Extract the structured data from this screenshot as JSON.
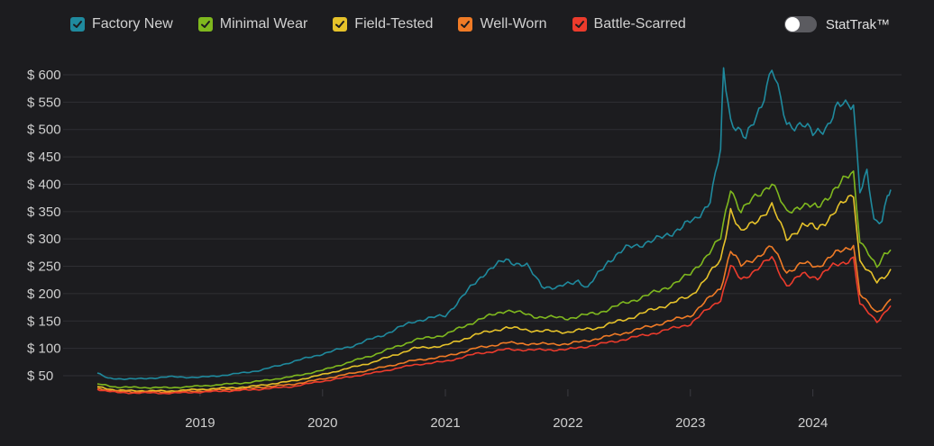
{
  "legend": {
    "items": [
      {
        "label": "Factory New",
        "color": "#1f8a9e"
      },
      {
        "label": "Minimal Wear",
        "color": "#7fb81e"
      },
      {
        "label": "Field-Tested",
        "color": "#e6c22a"
      },
      {
        "label": "Well-Worn",
        "color": "#f07b26"
      },
      {
        "label": "Battle-Scarred",
        "color": "#ec3b2c"
      }
    ],
    "checked_icon": "check-icon"
  },
  "toggle": {
    "label": "StatTrak™",
    "on": false
  },
  "chart_data": {
    "type": "line",
    "x_range": [
      "2018-03-01",
      "2024-08-20"
    ],
    "ylim": [
      0,
      640
    ],
    "y_ticks": [
      50,
      100,
      150,
      200,
      250,
      300,
      350,
      400,
      450,
      500,
      550,
      600
    ],
    "y_tick_labels": [
      "$ 50",
      "$ 100",
      "$ 150",
      "$ 200",
      "$ 250",
      "$ 300",
      "$ 350",
      "$ 400",
      "$ 450",
      "$ 500",
      "$ 550",
      "$ 600"
    ],
    "x_ticks": [
      "2019-01-01",
      "2020-01-01",
      "2021-01-01",
      "2022-01-01",
      "2023-01-01",
      "2024-01-01"
    ],
    "x_tick_labels": [
      "2019",
      "2020",
      "2021",
      "2022",
      "2023",
      "2024"
    ],
    "grid": true,
    "legend_position": "top-left",
    "series": [
      {
        "name": "Factory New",
        "color": "#1f8a9e",
        "points": [
          [
            "2018-03-01",
            55
          ],
          [
            "2018-04-01",
            45
          ],
          [
            "2018-07-01",
            44
          ],
          [
            "2018-10-01",
            48
          ],
          [
            "2019-01-01",
            47
          ],
          [
            "2019-04-01",
            52
          ],
          [
            "2019-07-01",
            60
          ],
          [
            "2019-10-01",
            75
          ],
          [
            "2020-01-01",
            90
          ],
          [
            "2020-04-01",
            105
          ],
          [
            "2020-07-01",
            125
          ],
          [
            "2020-10-01",
            150
          ],
          [
            "2021-01-01",
            160
          ],
          [
            "2021-03-01",
            200
          ],
          [
            "2021-05-01",
            240
          ],
          [
            "2021-07-01",
            262
          ],
          [
            "2021-09-01",
            250
          ],
          [
            "2021-10-15",
            215
          ],
          [
            "2021-12-01",
            210
          ],
          [
            "2022-02-01",
            225
          ],
          [
            "2022-03-01",
            210
          ],
          [
            "2022-05-01",
            260
          ],
          [
            "2022-07-01",
            285
          ],
          [
            "2022-10-01",
            300
          ],
          [
            "2022-12-01",
            320
          ],
          [
            "2023-01-15",
            335
          ],
          [
            "2023-03-01",
            370
          ],
          [
            "2023-04-01",
            460
          ],
          [
            "2023-04-10",
            612
          ],
          [
            "2023-05-01",
            520
          ],
          [
            "2023-06-15",
            480
          ],
          [
            "2023-08-01",
            550
          ],
          [
            "2023-09-01",
            610
          ],
          [
            "2023-10-15",
            510
          ],
          [
            "2023-12-01",
            510
          ],
          [
            "2024-01-01",
            490
          ],
          [
            "2024-02-15",
            510
          ],
          [
            "2024-03-15",
            540
          ],
          [
            "2024-05-01",
            550
          ],
          [
            "2024-05-20",
            390
          ],
          [
            "2024-06-10",
            420
          ],
          [
            "2024-07-01",
            330
          ],
          [
            "2024-07-25",
            335
          ],
          [
            "2024-08-10",
            385
          ],
          [
            "2024-08-20",
            390
          ]
        ]
      },
      {
        "name": "Minimal Wear",
        "color": "#7fb81e",
        "points": [
          [
            "2018-03-01",
            35
          ],
          [
            "2018-05-01",
            29
          ],
          [
            "2018-10-01",
            28
          ],
          [
            "2019-01-01",
            31
          ],
          [
            "2019-06-01",
            38
          ],
          [
            "2019-10-01",
            48
          ],
          [
            "2020-01-01",
            60
          ],
          [
            "2020-06-01",
            88
          ],
          [
            "2020-10-01",
            115
          ],
          [
            "2021-01-01",
            125
          ],
          [
            "2021-04-01",
            150
          ],
          [
            "2021-07-01",
            170
          ],
          [
            "2021-10-01",
            158
          ],
          [
            "2022-01-01",
            155
          ],
          [
            "2022-04-01",
            165
          ],
          [
            "2022-07-01",
            185
          ],
          [
            "2022-10-01",
            205
          ],
          [
            "2023-01-01",
            235
          ],
          [
            "2023-04-01",
            300
          ],
          [
            "2023-05-01",
            395
          ],
          [
            "2023-06-01",
            350
          ],
          [
            "2023-09-01",
            405
          ],
          [
            "2023-10-15",
            345
          ],
          [
            "2023-12-01",
            365
          ],
          [
            "2024-01-15",
            355
          ],
          [
            "2024-03-01",
            390
          ],
          [
            "2024-05-01",
            420
          ],
          [
            "2024-05-20",
            300
          ],
          [
            "2024-06-15",
            275
          ],
          [
            "2024-07-10",
            245
          ],
          [
            "2024-08-01",
            270
          ],
          [
            "2024-08-20",
            280
          ]
        ]
      },
      {
        "name": "Field-Tested",
        "color": "#e6c22a",
        "points": [
          [
            "2018-03-01",
            30
          ],
          [
            "2018-05-01",
            23
          ],
          [
            "2018-10-01",
            22
          ],
          [
            "2019-01-01",
            25
          ],
          [
            "2019-06-01",
            30
          ],
          [
            "2019-10-01",
            40
          ],
          [
            "2020-01-01",
            52
          ],
          [
            "2020-06-01",
            75
          ],
          [
            "2020-10-01",
            100
          ],
          [
            "2021-01-01",
            105
          ],
          [
            "2021-04-01",
            125
          ],
          [
            "2021-07-01",
            138
          ],
          [
            "2021-10-01",
            132
          ],
          [
            "2022-01-01",
            130
          ],
          [
            "2022-04-01",
            138
          ],
          [
            "2022-07-01",
            155
          ],
          [
            "2022-10-01",
            175
          ],
          [
            "2023-01-01",
            195
          ],
          [
            "2023-04-01",
            260
          ],
          [
            "2023-05-01",
            355
          ],
          [
            "2023-06-01",
            310
          ],
          [
            "2023-09-01",
            360
          ],
          [
            "2023-10-15",
            300
          ],
          [
            "2023-12-01",
            325
          ],
          [
            "2024-01-15",
            320
          ],
          [
            "2024-03-01",
            345
          ],
          [
            "2024-05-01",
            385
          ],
          [
            "2024-05-20",
            260
          ],
          [
            "2024-06-15",
            240
          ],
          [
            "2024-07-10",
            220
          ],
          [
            "2024-08-01",
            232
          ],
          [
            "2024-08-20",
            245
          ]
        ]
      },
      {
        "name": "Well-Worn",
        "color": "#f07b26",
        "points": [
          [
            "2018-03-01",
            27
          ],
          [
            "2018-05-01",
            21
          ],
          [
            "2018-10-01",
            20
          ],
          [
            "2019-01-01",
            22
          ],
          [
            "2019-06-01",
            27
          ],
          [
            "2019-10-01",
            34
          ],
          [
            "2020-01-01",
            44
          ],
          [
            "2020-06-01",
            62
          ],
          [
            "2020-10-01",
            78
          ],
          [
            "2021-01-01",
            85
          ],
          [
            "2021-04-01",
            100
          ],
          [
            "2021-07-01",
            110
          ],
          [
            "2021-10-01",
            108
          ],
          [
            "2022-01-01",
            108
          ],
          [
            "2022-04-01",
            118
          ],
          [
            "2022-07-01",
            130
          ],
          [
            "2022-10-01",
            145
          ],
          [
            "2023-01-01",
            160
          ],
          [
            "2023-04-01",
            210
          ],
          [
            "2023-05-01",
            280
          ],
          [
            "2023-06-01",
            250
          ],
          [
            "2023-09-01",
            285
          ],
          [
            "2023-10-15",
            240
          ],
          [
            "2023-12-01",
            255
          ],
          [
            "2024-01-15",
            250
          ],
          [
            "2024-03-01",
            270
          ],
          [
            "2024-05-01",
            290
          ],
          [
            "2024-05-20",
            200
          ],
          [
            "2024-06-15",
            180
          ],
          [
            "2024-07-10",
            165
          ],
          [
            "2024-08-01",
            178
          ],
          [
            "2024-08-20",
            190
          ]
        ]
      },
      {
        "name": "Battle-Scarred",
        "color": "#ec3b2c",
        "points": [
          [
            "2018-03-01",
            25
          ],
          [
            "2018-05-01",
            19
          ],
          [
            "2018-10-01",
            18
          ],
          [
            "2019-01-01",
            20
          ],
          [
            "2019-06-01",
            24
          ],
          [
            "2019-10-01",
            30
          ],
          [
            "2020-01-01",
            40
          ],
          [
            "2020-06-01",
            55
          ],
          [
            "2020-10-01",
            70
          ],
          [
            "2021-01-01",
            76
          ],
          [
            "2021-04-01",
            90
          ],
          [
            "2021-07-01",
            98
          ],
          [
            "2021-10-01",
            97
          ],
          [
            "2022-01-01",
            98
          ],
          [
            "2022-04-01",
            107
          ],
          [
            "2022-07-01",
            118
          ],
          [
            "2022-10-01",
            130
          ],
          [
            "2023-01-01",
            145
          ],
          [
            "2023-04-01",
            190
          ],
          [
            "2023-05-01",
            250
          ],
          [
            "2023-06-01",
            225
          ],
          [
            "2023-09-01",
            265
          ],
          [
            "2023-10-15",
            215
          ],
          [
            "2023-12-01",
            235
          ],
          [
            "2024-01-15",
            230
          ],
          [
            "2024-03-01",
            250
          ],
          [
            "2024-05-01",
            265
          ],
          [
            "2024-05-20",
            180
          ],
          [
            "2024-06-15",
            165
          ],
          [
            "2024-07-10",
            150
          ],
          [
            "2024-08-01",
            165
          ],
          [
            "2024-08-20",
            178
          ]
        ]
      }
    ]
  }
}
